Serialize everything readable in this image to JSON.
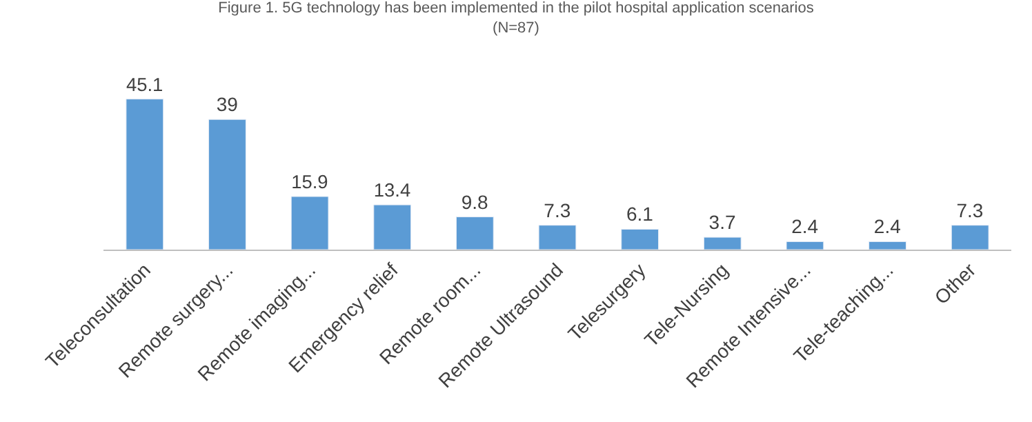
{
  "chart_data": {
    "type": "bar",
    "title": "Figure 1. 5G technology has been implemented in the pilot hospital application scenarios\n(N=87)",
    "categories": [
      "Teleconsultation",
      "Remote surgery...",
      "Remote imaging...",
      "Emergency relief",
      "Remote room...",
      "Remote Ultrasound",
      "Telesurgery",
      "Tele-Nursing",
      "Remote Intensive...",
      "Tele-teaching...",
      "Other"
    ],
    "values": [
      45.1,
      39,
      15.9,
      13.4,
      9.8,
      7.3,
      6.1,
      3.7,
      2.4,
      2.4,
      7.3
    ],
    "color": "#5b9bd5",
    "data_labels": true
  }
}
